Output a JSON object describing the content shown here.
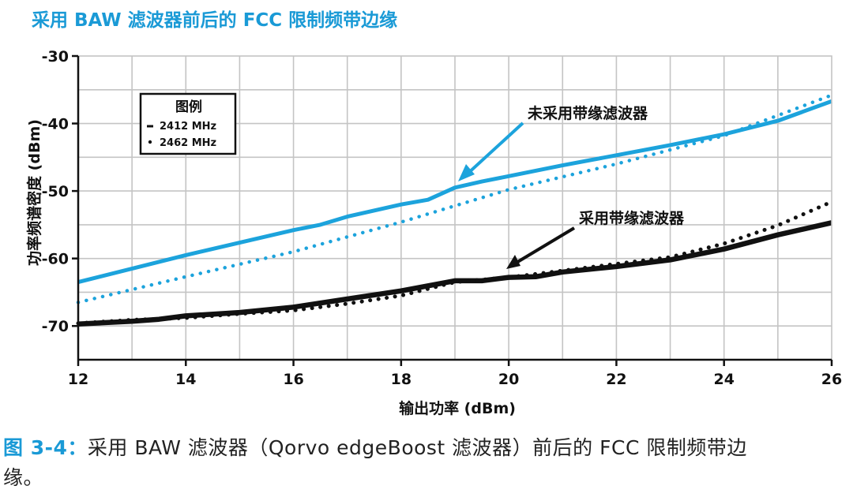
{
  "caption": {
    "label": "图 3-4：",
    "line1": "采用 BAW 滤波器（Qorvo edgeBoost 滤波器）前后的 FCC 限制频带边",
    "line2": "缘。"
  },
  "colors": {
    "title": "#1a9ad6",
    "blue_series": "#1ca3dc",
    "black_series": "#111111",
    "grid": "#c4c4c4",
    "axis": "#111111"
  },
  "chart_data": {
    "type": "line",
    "title": "采用 BAW 滤波器前后的 FCC 限制频带边缘",
    "xlabel": "输出功率 (dBm)",
    "ylabel": "功率频谱密度 (dBm)",
    "xlim": [
      12,
      26
    ],
    "ylim": [
      -75,
      -30
    ],
    "x_ticks": [
      12,
      14,
      16,
      18,
      20,
      22,
      24,
      26
    ],
    "y_ticks": [
      -30,
      -40,
      -50,
      -60,
      -70
    ],
    "grid": true,
    "legend": {
      "title": "图例",
      "placement": "top-left",
      "entries": [
        {
          "label": "2412 MHz",
          "style": "solid"
        },
        {
          "label": "2462 MHz",
          "style": "dotted"
        }
      ]
    },
    "annotations": [
      {
        "text": "未采用带缘滤波器",
        "points_to": [
          19,
          -49.5
        ]
      },
      {
        "text": "采用带缘滤波器",
        "points_to": [
          19.9,
          -61.5
        ]
      }
    ],
    "series": [
      {
        "group": "未采用带缘滤波器",
        "frequency": "2412 MHz",
        "style": "solid",
        "color": "#1ca3dc",
        "x": [
          12,
          14,
          16,
          16.5,
          17,
          18,
          18.5,
          19,
          19.5,
          20,
          21,
          22,
          23,
          24,
          25,
          26
        ],
        "y": [
          -63.5,
          -59.5,
          -55.8,
          -55,
          -53.8,
          -52,
          -51.3,
          -49.5,
          -48.6,
          -47.8,
          -46.2,
          -44.7,
          -43.2,
          -41.6,
          -39.6,
          -36.7
        ]
      },
      {
        "group": "未采用带缘滤波器",
        "frequency": "2462 MHz",
        "style": "dotted",
        "color": "#1ca3dc",
        "x": [
          12,
          14,
          16,
          18,
          19,
          20,
          22,
          24,
          26
        ],
        "y": [
          -66.5,
          -62.7,
          -59,
          -54.6,
          -52.2,
          -49.8,
          -46,
          -41.8,
          -35.8
        ]
      },
      {
        "group": "采用带缘滤波器",
        "frequency": "2412 MHz",
        "style": "solid",
        "color": "#111111",
        "x": [
          12,
          13,
          13.5,
          14,
          15,
          16,
          17,
          18,
          19,
          19.5,
          20,
          20.5,
          21,
          22,
          23,
          24,
          25,
          26
        ],
        "y": [
          -69.7,
          -69.3,
          -69,
          -68.5,
          -68,
          -67.2,
          -66,
          -64.8,
          -63.3,
          -63.3,
          -62.8,
          -62.7,
          -62,
          -61.2,
          -60.2,
          -58.6,
          -56.5,
          -54.7
        ]
      },
      {
        "group": "采用带缘滤波器",
        "frequency": "2462 MHz",
        "style": "dotted",
        "color": "#111111",
        "x": [
          12,
          13,
          14,
          15,
          16,
          17,
          18,
          19,
          20,
          21,
          22,
          23,
          24,
          25,
          26
        ],
        "y": [
          -69.6,
          -69.1,
          -68.8,
          -68.2,
          -67.7,
          -66.7,
          -65.5,
          -63.5,
          -62.8,
          -61.8,
          -60.8,
          -59.8,
          -57.8,
          -55.1,
          -51.6
        ]
      }
    ]
  }
}
